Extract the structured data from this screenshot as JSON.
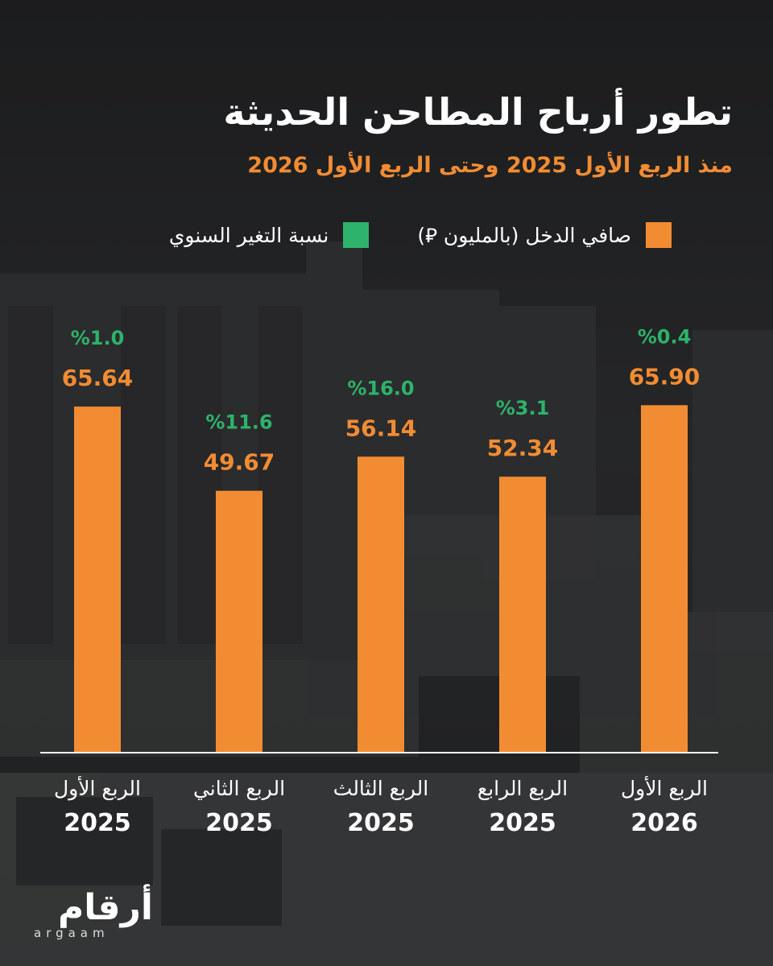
{
  "title": "تطور أرباح المطاحن الحديثة",
  "subtitle": "منذ الربع الأول 2025 وحتى الربع الأول 2026",
  "colors": {
    "income": "#f28c33",
    "change": "#2db36b",
    "axis": "#ffffff",
    "text": "#ffffff"
  },
  "legend": {
    "income_label": "صافي الدخل (بالمليون ⃁)",
    "change_label": "نسبة التغير السنوي"
  },
  "logo": {
    "arabic": "أرقام",
    "latin": "argaam"
  },
  "chart_data": {
    "type": "bar",
    "title": "تطور أرباح المطاحن الحديثة",
    "subtitle": "منذ الربع الأول 2025 وحتى الربع الأول 2026",
    "categories": [
      [
        "الربع الأول",
        "2025"
      ],
      [
        "الربع الثاني",
        "2025"
      ],
      [
        "الربع الثالث",
        "2025"
      ],
      [
        "الربع الرابع",
        "2025"
      ],
      [
        "الربع الأول",
        "2026"
      ]
    ],
    "series": [
      {
        "name": "صافي الدخل (بالمليون ⃁)",
        "values": [
          65.64,
          49.67,
          56.14,
          52.34,
          65.9
        ]
      },
      {
        "name": "نسبة التغير السنوي",
        "values": [
          1.0,
          11.6,
          16.0,
          3.1,
          0.4
        ]
      }
    ],
    "value_labels": [
      "65.64",
      "49.67",
      "56.14",
      "52.34",
      "65.90"
    ],
    "change_labels": [
      "%1.0",
      "%11.6",
      "%16.0",
      "%3.1",
      "%0.4"
    ],
    "legend_position": "top",
    "grid": false
  }
}
